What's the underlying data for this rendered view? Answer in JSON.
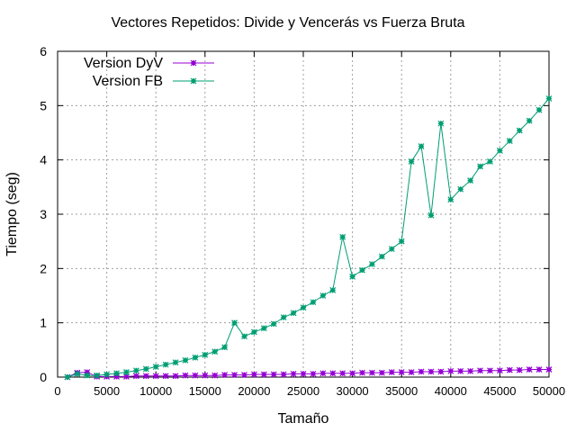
{
  "chart_data": {
    "type": "line",
    "title": "Vectores Repetidos: Divide y Vencerás vs Fuerza Bruta",
    "xlabel": "Tamaño",
    "ylabel": "Tiempo (seg)",
    "xlim": [
      0,
      50000
    ],
    "ylim": [
      0,
      6
    ],
    "xticks": [
      0,
      5000,
      10000,
      15000,
      20000,
      25000,
      30000,
      35000,
      40000,
      45000,
      50000
    ],
    "yticks": [
      0,
      1,
      2,
      3,
      4,
      5,
      6
    ],
    "grid": true,
    "legend_position": "top-left",
    "x": [
      1000,
      2000,
      3000,
      4000,
      5000,
      6000,
      7000,
      8000,
      9000,
      10000,
      11000,
      12000,
      13000,
      14000,
      15000,
      16000,
      17000,
      18000,
      19000,
      20000,
      21000,
      22000,
      23000,
      24000,
      25000,
      26000,
      27000,
      28000,
      29000,
      30000,
      31000,
      32000,
      33000,
      34000,
      35000,
      36000,
      37000,
      38000,
      39000,
      40000,
      41000,
      42000,
      43000,
      44000,
      45000,
      46000,
      47000,
      48000,
      49000,
      50000
    ],
    "series": [
      {
        "name": "Version DyV",
        "color": "#9400d3",
        "values": [
          0.0,
          0.08,
          0.09,
          0.01,
          0.01,
          0.01,
          0.01,
          0.02,
          0.02,
          0.02,
          0.02,
          0.02,
          0.03,
          0.03,
          0.03,
          0.03,
          0.04,
          0.04,
          0.04,
          0.05,
          0.05,
          0.05,
          0.05,
          0.06,
          0.06,
          0.06,
          0.07,
          0.07,
          0.07,
          0.07,
          0.08,
          0.08,
          0.08,
          0.09,
          0.09,
          0.09,
          0.1,
          0.1,
          0.1,
          0.11,
          0.11,
          0.11,
          0.12,
          0.12,
          0.12,
          0.13,
          0.13,
          0.14,
          0.14,
          0.14
        ]
      },
      {
        "name": "Version FB",
        "color": "#009e73",
        "values": [
          0.0,
          0.06,
          0.03,
          0.03,
          0.05,
          0.07,
          0.09,
          0.12,
          0.15,
          0.19,
          0.23,
          0.27,
          0.31,
          0.36,
          0.41,
          0.47,
          0.55,
          1.0,
          0.75,
          0.83,
          0.9,
          0.98,
          1.1,
          1.18,
          1.28,
          1.38,
          1.5,
          1.6,
          2.58,
          1.85,
          1.97,
          2.08,
          2.22,
          2.36,
          2.5,
          3.97,
          4.25,
          2.98,
          4.67,
          3.27,
          3.46,
          3.62,
          3.88,
          3.97,
          4.17,
          4.35,
          4.54,
          4.72,
          4.92,
          5.13
        ]
      }
    ]
  }
}
